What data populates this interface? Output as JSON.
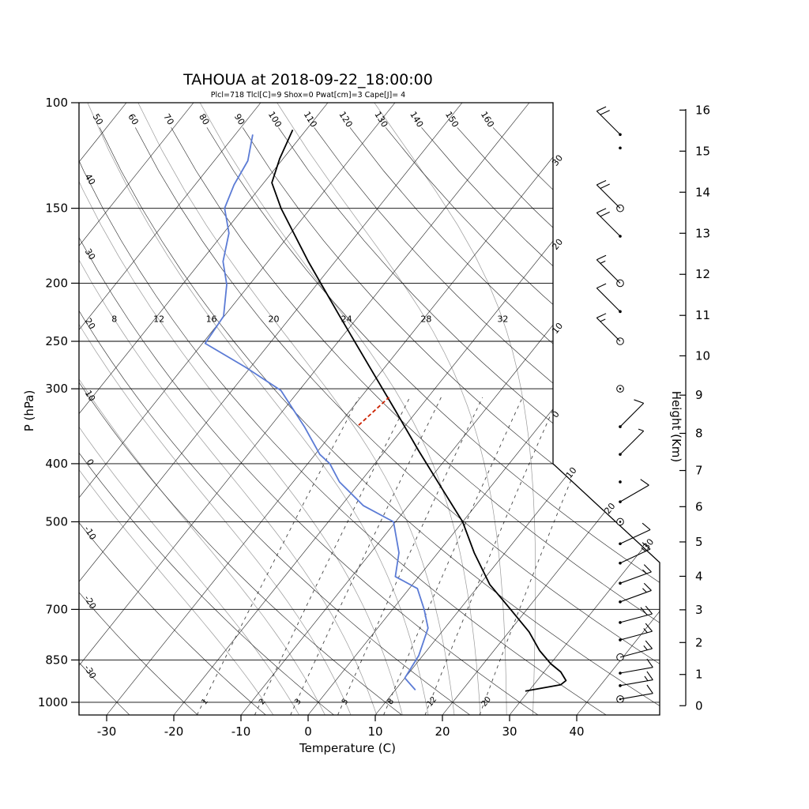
{
  "title": "TAHOUA at 2018-09-22_18:00:00",
  "subtitle": "Plcl=718 Tlcl[C]=9 Shox=0 Pwat[cm]=3 Cape[J]= 4",
  "chart_data": {
    "type": "skewt-log-p-sounding",
    "station": "TAHOUA",
    "datetime": "2018-09-22_18:00:00",
    "params": {
      "Plcl": 718,
      "Tlcl_C": 9,
      "Shox": 0,
      "Pwat_cm": 3,
      "Cape_J": 4
    },
    "xlabel": "Temperature (C)",
    "ylabel": "P (hPa)",
    "y2label": "Height (Km)",
    "pressure_ticks": [
      100,
      150,
      200,
      250,
      300,
      400,
      500,
      700,
      850,
      1000
    ],
    "temp_ticks": [
      -30,
      -20,
      -10,
      0,
      10,
      20,
      30,
      40
    ],
    "height_ticks_km": [
      0,
      1,
      2,
      3,
      4,
      5,
      6,
      7,
      8,
      9,
      10,
      11,
      12,
      13,
      14,
      15,
      16
    ],
    "pressure_range_hpa": [
      100,
      1050
    ],
    "isotherm_step_c": 10,
    "dry_adiabat_top_labels": [
      50,
      60,
      70,
      80,
      90,
      100,
      110,
      120,
      130,
      140,
      150,
      160
    ],
    "dry_adiabat_left_labels": [
      40,
      30,
      20,
      10,
      0,
      -10,
      -20,
      -30
    ],
    "isotherm_right_edge_labels": [
      "30",
      "20",
      "10",
      "0"
    ],
    "isotherm_diagonal_labels": [
      "10",
      "20",
      "30"
    ],
    "moist_adiabats_drawn": [
      -8,
      -4,
      0,
      4,
      8,
      12,
      16,
      20,
      24,
      28,
      32
    ],
    "moist_adiabat_labels": [
      8,
      12,
      16,
      20,
      24,
      28,
      32
    ],
    "mixing_ratio_lines_gkg": [
      1,
      2,
      3,
      5,
      8,
      12,
      20
    ],
    "temperature_profile_p_T": [
      [
        958,
        29.5
      ],
      [
        935,
        34.0
      ],
      [
        920,
        34.3
      ],
      [
        890,
        32.5
      ],
      [
        862,
        30.0
      ],
      [
        820,
        26.8
      ],
      [
        763,
        23.0
      ],
      [
        697,
        17.3
      ],
      [
        636,
        11.5
      ],
      [
        563,
        5.4
      ],
      [
        500,
        0.0
      ],
      [
        442,
        -6.8
      ],
      [
        380,
        -15.1
      ],
      [
        326,
        -23.3
      ],
      [
        280,
        -31.5
      ],
      [
        227,
        -42.8
      ],
      [
        184,
        -54.0
      ],
      [
        150,
        -64.4
      ],
      [
        136,
        -68.8
      ],
      [
        124,
        -70.5
      ],
      [
        111,
        -72.0
      ]
    ],
    "dewpoint_profile_p_Td": [
      [
        954,
        13.0
      ],
      [
        911,
        10.0
      ],
      [
        836,
        9.4
      ],
      [
        752,
        7.5
      ],
      [
        700,
        4.7
      ],
      [
        646,
        1.2
      ],
      [
        617,
        -3.5
      ],
      [
        563,
        -5.8
      ],
      [
        500,
        -10.3
      ],
      [
        470,
        -16.7
      ],
      [
        429,
        -23.1
      ],
      [
        400,
        -26.7
      ],
      [
        386,
        -29.3
      ],
      [
        347,
        -34.9
      ],
      [
        302,
        -42.7
      ],
      [
        276,
        -50.8
      ],
      [
        252,
        -59.6
      ],
      [
        227,
        -60.1
      ],
      [
        201,
        -63.4
      ],
      [
        184,
        -66.7
      ],
      [
        165,
        -69.2
      ],
      [
        150,
        -72.8
      ],
      [
        137,
        -74.2
      ],
      [
        125,
        -75.0
      ],
      [
        113,
        -77.4
      ]
    ],
    "parcel_segment_p_T": [
      [
        345,
        -27.0
      ],
      [
        310,
        -25.8
      ]
    ],
    "winds": [
      {
        "p": 113,
        "angle": 135,
        "speed": 20,
        "marker": "dot"
      },
      {
        "p": 119,
        "angle": 0,
        "speed": 0,
        "marker": "dot"
      },
      {
        "p": 150,
        "angle": 135,
        "speed": 20,
        "marker": "circle"
      },
      {
        "p": 167,
        "angle": 135,
        "speed": 20,
        "marker": "dot"
      },
      {
        "p": 200,
        "angle": 135,
        "speed": 15,
        "marker": "circle"
      },
      {
        "p": 223,
        "angle": 135,
        "speed": 10,
        "marker": "dot"
      },
      {
        "p": 250,
        "angle": 135,
        "speed": 15,
        "marker": "circle"
      },
      {
        "p": 300,
        "angle": 0,
        "speed": 0,
        "marker": "circle-dot"
      },
      {
        "p": 347,
        "angle": 45,
        "speed": 10,
        "marker": "dot"
      },
      {
        "p": 386,
        "angle": 45,
        "speed": 5,
        "marker": "dot"
      },
      {
        "p": 429,
        "angle": 0,
        "speed": 0,
        "marker": "dot"
      },
      {
        "p": 463,
        "angle": 30,
        "speed": 10,
        "marker": "dot"
      },
      {
        "p": 500,
        "angle": 0,
        "speed": 0,
        "marker": "circle-dot"
      },
      {
        "p": 544,
        "angle": 25,
        "speed": 10,
        "marker": "dot"
      },
      {
        "p": 586,
        "angle": 25,
        "speed": 15,
        "marker": "dot"
      },
      {
        "p": 633,
        "angle": 20,
        "speed": 15,
        "marker": "dot"
      },
      {
        "p": 680,
        "angle": 20,
        "speed": 15,
        "marker": "dot"
      },
      {
        "p": 736,
        "angle": 15,
        "speed": 20,
        "marker": "dot"
      },
      {
        "p": 787,
        "angle": 15,
        "speed": 15,
        "marker": "dot"
      },
      {
        "p": 841,
        "angle": 15,
        "speed": 15,
        "marker": "circle"
      },
      {
        "p": 894,
        "angle": 10,
        "speed": 10,
        "marker": "dot"
      },
      {
        "p": 938,
        "angle": 10,
        "speed": 15,
        "marker": "dot"
      },
      {
        "p": 988,
        "angle": 10,
        "speed": 10,
        "marker": "circle-dot"
      }
    ],
    "colors": {
      "temperature": "#000000",
      "dewpoint": "#5b7bd5",
      "parcel": "#cc2200",
      "subtitle": "#a52a2a",
      "grid": "#222222",
      "moist_adiabat": "#999999",
      "mixing_ratio": "#444444"
    }
  }
}
